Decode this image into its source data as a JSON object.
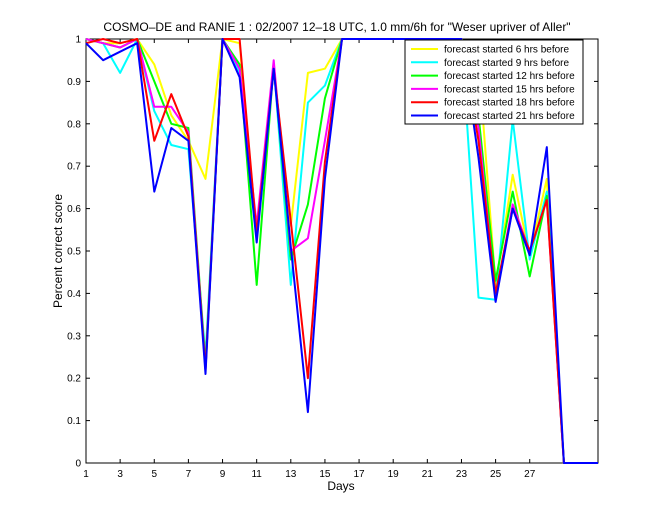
{
  "chart_data": {
    "type": "line",
    "title": "COSMO–DE and RANIE 1 : 02/2007 12–18 UTC, 1.0 mm/6h for \"Weser upriver of Aller\"",
    "xlabel": "Days",
    "ylabel": "Percent correct score",
    "xlim": [
      1,
      31
    ],
    "ylim": [
      0,
      1
    ],
    "xticks": [
      1,
      3,
      5,
      7,
      9,
      11,
      13,
      15,
      17,
      19,
      21,
      23,
      25,
      27
    ],
    "yticks": [
      0,
      0.1,
      0.2,
      0.3,
      0.4,
      0.5,
      0.6,
      0.7,
      0.8,
      0.9,
      1
    ],
    "legend_position": "top-right",
    "grid": false,
    "series": [
      {
        "name": "forecast started 6 hrs before",
        "color": "#ffff00",
        "x": [
          1,
          2,
          3,
          4,
          5,
          6,
          7,
          8,
          9,
          10,
          11,
          12,
          13,
          14,
          15,
          16,
          17,
          18,
          19,
          20,
          21,
          22,
          23,
          24,
          25,
          26,
          27,
          28,
          29,
          30,
          31
        ],
        "y": [
          1,
          0.99,
          0.99,
          1,
          0.94,
          0.82,
          0.76,
          0.67,
          1,
          0.99,
          0.53,
          0.93,
          0.56,
          0.92,
          0.93,
          1,
          1,
          1,
          1,
          1,
          1,
          1,
          1,
          0.95,
          0.42,
          0.68,
          0.49,
          0.67,
          0,
          0,
          0
        ]
      },
      {
        "name": "forecast started 9 hrs before",
        "color": "#00ffff",
        "x": [
          1,
          2,
          3,
          4,
          5,
          6,
          7,
          8,
          9,
          10,
          11,
          12,
          13,
          14,
          15,
          16,
          17,
          18,
          19,
          20,
          21,
          22,
          23,
          24,
          25,
          26,
          27,
          28,
          29,
          30,
          31
        ],
        "y": [
          1,
          0.99,
          0.92,
          1,
          0.83,
          0.75,
          0.74,
          0.25,
          1,
          0.92,
          0.55,
          0.94,
          0.42,
          0.85,
          0.89,
          1,
          1,
          1,
          1,
          1,
          1,
          1,
          1,
          0.39,
          0.385,
          0.81,
          0.48,
          0.64,
          0,
          0,
          0
        ]
      },
      {
        "name": "forecast started 12 hrs before",
        "color": "#00ff00",
        "x": [
          1,
          2,
          3,
          4,
          5,
          6,
          7,
          8,
          9,
          10,
          11,
          12,
          13,
          14,
          15,
          16,
          17,
          18,
          19,
          20,
          21,
          22,
          23,
          24,
          25,
          26,
          27,
          28,
          29,
          30,
          31
        ],
        "y": [
          1,
          0.99,
          0.98,
          1,
          0.9,
          0.8,
          0.79,
          0.23,
          1,
          0.94,
          0.42,
          0.94,
          0.48,
          0.61,
          0.86,
          1,
          1,
          1,
          1,
          1,
          1,
          1,
          1,
          0.82,
          0.43,
          0.64,
          0.44,
          0.63,
          0,
          0,
          0
        ]
      },
      {
        "name": "forecast started 15 hrs before",
        "color": "#ff00ff",
        "x": [
          1,
          2,
          3,
          4,
          5,
          6,
          7,
          8,
          9,
          10,
          11,
          12,
          13,
          14,
          15,
          16,
          17,
          18,
          19,
          20,
          21,
          22,
          23,
          24,
          25,
          26,
          27,
          28,
          29,
          30,
          31
        ],
        "y": [
          1,
          0.99,
          0.98,
          1,
          0.84,
          0.84,
          0.78,
          0.22,
          1,
          0.93,
          0.56,
          0.95,
          0.5,
          0.53,
          0.76,
          1,
          1,
          1,
          1,
          1,
          1,
          1,
          1,
          0.79,
          0.39,
          0.61,
          0.5,
          0.62,
          0,
          0,
          0
        ]
      },
      {
        "name": "forecast started 18 hrs before",
        "color": "#ff0000",
        "x": [
          1,
          2,
          3,
          4,
          5,
          6,
          7,
          8,
          9,
          10,
          11,
          12,
          13,
          14,
          15,
          16,
          17,
          18,
          19,
          20,
          21,
          22,
          23,
          24,
          25,
          26,
          27,
          28,
          29,
          30,
          31
        ],
        "y": [
          0.99,
          1,
          0.99,
          1,
          0.76,
          0.87,
          0.77,
          0.22,
          1,
          1,
          0.54,
          0.93,
          0.57,
          0.2,
          0.71,
          1,
          1,
          1,
          1,
          1,
          1,
          1,
          1,
          0.76,
          0.4,
          0.6,
          0.5,
          0.62,
          0,
          0,
          0
        ]
      },
      {
        "name": "forecast started 21 hrs before",
        "color": "#0000ff",
        "x": [
          1,
          2,
          3,
          4,
          5,
          6,
          7,
          8,
          9,
          10,
          11,
          12,
          13,
          14,
          15,
          16,
          17,
          18,
          19,
          20,
          21,
          22,
          23,
          24,
          25,
          26,
          27,
          28,
          29,
          30,
          31
        ],
        "y": [
          0.99,
          0.95,
          0.97,
          0.99,
          0.64,
          0.79,
          0.76,
          0.21,
          1,
          0.91,
          0.52,
          0.93,
          0.51,
          0.12,
          0.67,
          1,
          1,
          1,
          1,
          1,
          1,
          1,
          1,
          0.72,
          0.38,
          0.6,
          0.49,
          0.745,
          0,
          0,
          0
        ]
      }
    ]
  }
}
